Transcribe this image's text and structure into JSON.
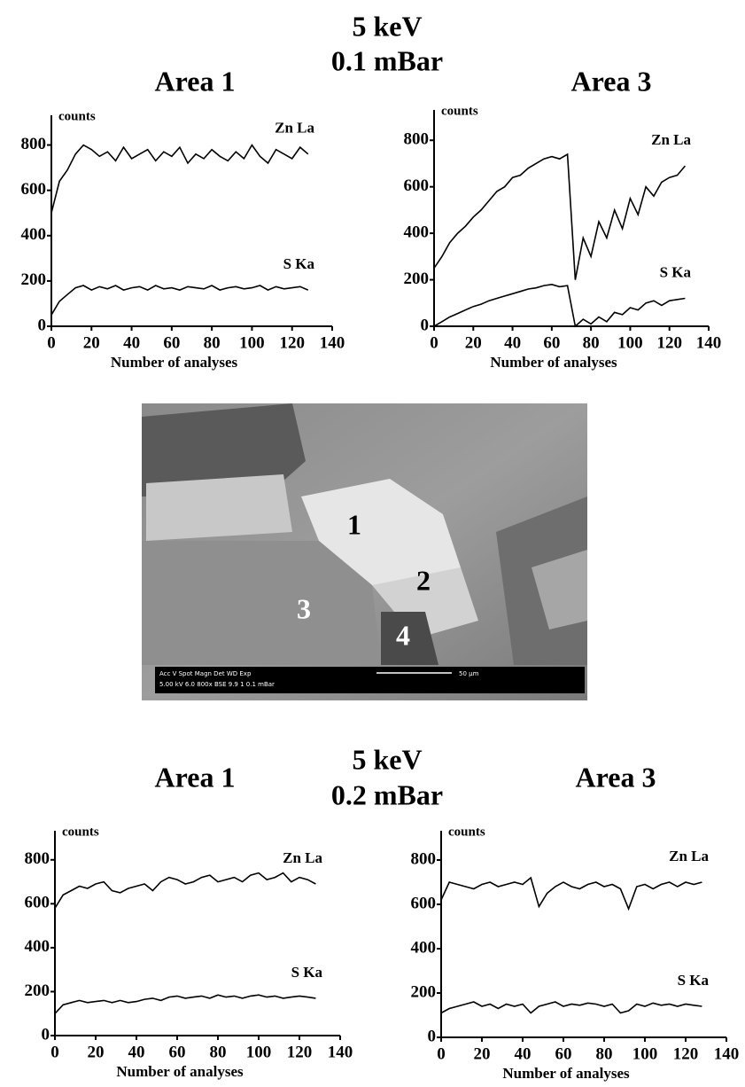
{
  "sections": [
    {
      "energy": "5 keV",
      "pressure": "0.1 mBar"
    },
    {
      "energy": "5 keV",
      "pressure": "0.2 mBar"
    }
  ],
  "image": {
    "regions": [
      "1",
      "2",
      "3",
      "4"
    ],
    "info_header": "Acc V  Spot Magn    Det  WD  Exp",
    "info_values": "5.00 kV 6.0  800x    BSE  9.9  1      0.1 mBar",
    "scale": "50 µm"
  },
  "chart_data": [
    {
      "type": "line",
      "title": "Area 1",
      "y_label": "counts",
      "x_label": "Number of analyses",
      "xlim": [
        0,
        140
      ],
      "ylim": [
        0,
        900
      ],
      "xticks": [
        0,
        20,
        40,
        60,
        80,
        100,
        120,
        140
      ],
      "yticks": [
        0,
        200,
        400,
        600,
        800
      ],
      "x": [
        0,
        4,
        8,
        12,
        16,
        20,
        24,
        28,
        32,
        36,
        40,
        44,
        48,
        52,
        56,
        60,
        64,
        68,
        72,
        76,
        80,
        84,
        88,
        92,
        96,
        100,
        104,
        108,
        112,
        116,
        120,
        124,
        128
      ],
      "series": [
        {
          "name": "Zn La",
          "color": "#000000",
          "values": [
            500,
            640,
            690,
            760,
            800,
            780,
            750,
            770,
            730,
            790,
            740,
            760,
            780,
            730,
            770,
            750,
            790,
            720,
            760,
            740,
            780,
            750,
            730,
            770,
            740,
            800,
            750,
            720,
            780,
            760,
            740,
            790,
            760
          ]
        },
        {
          "name": "S Ka",
          "color": "#000000",
          "values": [
            50,
            110,
            140,
            170,
            180,
            160,
            175,
            165,
            180,
            160,
            170,
            175,
            160,
            180,
            165,
            170,
            160,
            175,
            170,
            165,
            180,
            160,
            170,
            175,
            165,
            170,
            180,
            160,
            175,
            165,
            170,
            175,
            160
          ]
        }
      ]
    },
    {
      "type": "line",
      "title": "Area 3",
      "y_label": "counts",
      "x_label": "Number of analyses",
      "xlim": [
        0,
        140
      ],
      "ylim": [
        0,
        900
      ],
      "xticks": [
        0,
        20,
        40,
        60,
        80,
        100,
        120,
        140
      ],
      "yticks": [
        0,
        200,
        400,
        600,
        800
      ],
      "x": [
        0,
        4,
        8,
        12,
        16,
        20,
        24,
        28,
        32,
        36,
        40,
        44,
        48,
        52,
        56,
        60,
        64,
        68,
        72,
        76,
        80,
        84,
        88,
        92,
        96,
        100,
        104,
        108,
        112,
        116,
        120,
        124,
        128
      ],
      "series": [
        {
          "name": "Zn La",
          "color": "#000000",
          "values": [
            250,
            300,
            360,
            400,
            430,
            470,
            500,
            540,
            580,
            600,
            640,
            650,
            680,
            700,
            720,
            730,
            720,
            740,
            200,
            380,
            300,
            450,
            380,
            500,
            420,
            550,
            480,
            600,
            560,
            620,
            640,
            650,
            690
          ]
        },
        {
          "name": "S Ka",
          "color": "#000000",
          "values": [
            0,
            20,
            40,
            55,
            70,
            85,
            95,
            110,
            120,
            130,
            140,
            150,
            160,
            165,
            175,
            180,
            170,
            175,
            0,
            30,
            10,
            40,
            20,
            60,
            50,
            80,
            70,
            100,
            110,
            90,
            110,
            115,
            120
          ]
        }
      ]
    },
    {
      "type": "line",
      "title": "Area 1",
      "y_label": "counts",
      "x_label": "Number of analyses",
      "xlim": [
        0,
        140
      ],
      "ylim": [
        0,
        900
      ],
      "xticks": [
        0,
        20,
        40,
        60,
        80,
        100,
        120,
        140
      ],
      "yticks": [
        0,
        200,
        400,
        600,
        800
      ],
      "x": [
        0,
        4,
        8,
        12,
        16,
        20,
        24,
        28,
        32,
        36,
        40,
        44,
        48,
        52,
        56,
        60,
        64,
        68,
        72,
        76,
        80,
        84,
        88,
        92,
        96,
        100,
        104,
        108,
        112,
        116,
        120,
        124,
        128
      ],
      "series": [
        {
          "name": "Zn La",
          "color": "#000000",
          "values": [
            580,
            640,
            660,
            680,
            670,
            690,
            700,
            660,
            650,
            670,
            680,
            690,
            660,
            700,
            720,
            710,
            690,
            700,
            720,
            730,
            700,
            710,
            720,
            700,
            730,
            740,
            710,
            720,
            740,
            700,
            720,
            710,
            690
          ]
        },
        {
          "name": "S Ka",
          "color": "#000000",
          "values": [
            100,
            140,
            150,
            160,
            150,
            155,
            160,
            150,
            160,
            150,
            155,
            165,
            170,
            160,
            175,
            180,
            170,
            175,
            180,
            170,
            185,
            175,
            180,
            170,
            180,
            185,
            175,
            180,
            170,
            175,
            180,
            175,
            170
          ]
        }
      ]
    },
    {
      "type": "line",
      "title": "Area 3",
      "y_label": "counts",
      "x_label": "Number of analyses",
      "xlim": [
        0,
        140
      ],
      "ylim": [
        0,
        900
      ],
      "xticks": [
        0,
        20,
        40,
        60,
        80,
        100,
        120,
        140
      ],
      "yticks": [
        0,
        200,
        400,
        600,
        800
      ],
      "x": [
        0,
        4,
        8,
        12,
        16,
        20,
        24,
        28,
        32,
        36,
        40,
        44,
        48,
        52,
        56,
        60,
        64,
        68,
        72,
        76,
        80,
        84,
        88,
        92,
        96,
        100,
        104,
        108,
        112,
        116,
        120,
        124,
        128
      ],
      "series": [
        {
          "name": "Zn La",
          "color": "#000000",
          "values": [
            620,
            700,
            690,
            680,
            670,
            690,
            700,
            680,
            690,
            700,
            690,
            720,
            590,
            650,
            680,
            700,
            680,
            670,
            690,
            700,
            680,
            690,
            670,
            580,
            680,
            690,
            670,
            690,
            700,
            680,
            700,
            690,
            700
          ]
        },
        {
          "name": "S Ka",
          "color": "#000000",
          "values": [
            110,
            130,
            140,
            150,
            160,
            140,
            150,
            130,
            150,
            140,
            150,
            110,
            140,
            150,
            160,
            140,
            150,
            145,
            155,
            150,
            140,
            150,
            110,
            120,
            150,
            140,
            155,
            145,
            150,
            140,
            150,
            145,
            140
          ]
        }
      ]
    }
  ]
}
